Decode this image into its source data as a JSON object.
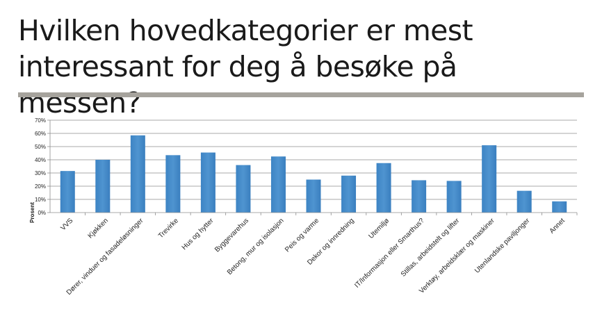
{
  "slide": {
    "title": "Hvilken hovedkategorier er mest interessant for deg å besøke på messen?"
  },
  "chart_data": {
    "type": "bar",
    "ylabel": "Prosent",
    "xlabel": "",
    "ylim": [
      0,
      70
    ],
    "yticks": [
      "0%",
      "10%",
      "20%",
      "30%",
      "40%",
      "50%",
      "60%",
      "70%"
    ],
    "grid": true,
    "legend": "none",
    "bar_color": "#4f94d0",
    "categories": [
      "VVS",
      "Kjøkken",
      "Dører, vinduer og fasadeløsninger",
      "Trevirke",
      "Hus og hytter",
      "Byggevarehus",
      "Betong, mur og isolasjon",
      "Peis og varme",
      "Dekor og innredning",
      "Utemiljø",
      "IT/Informasjon eller Smarthus?",
      "Stillas, arbeidstelt og lifter",
      "Verktøy, arbeidsklær og maskiner",
      "Utenlandske paviljonger",
      "Annet"
    ],
    "values": [
      31.5,
      40,
      58.5,
      43.5,
      45.5,
      36,
      42.5,
      25,
      28,
      37.5,
      24.5,
      24,
      51,
      16.5,
      8.5
    ]
  }
}
